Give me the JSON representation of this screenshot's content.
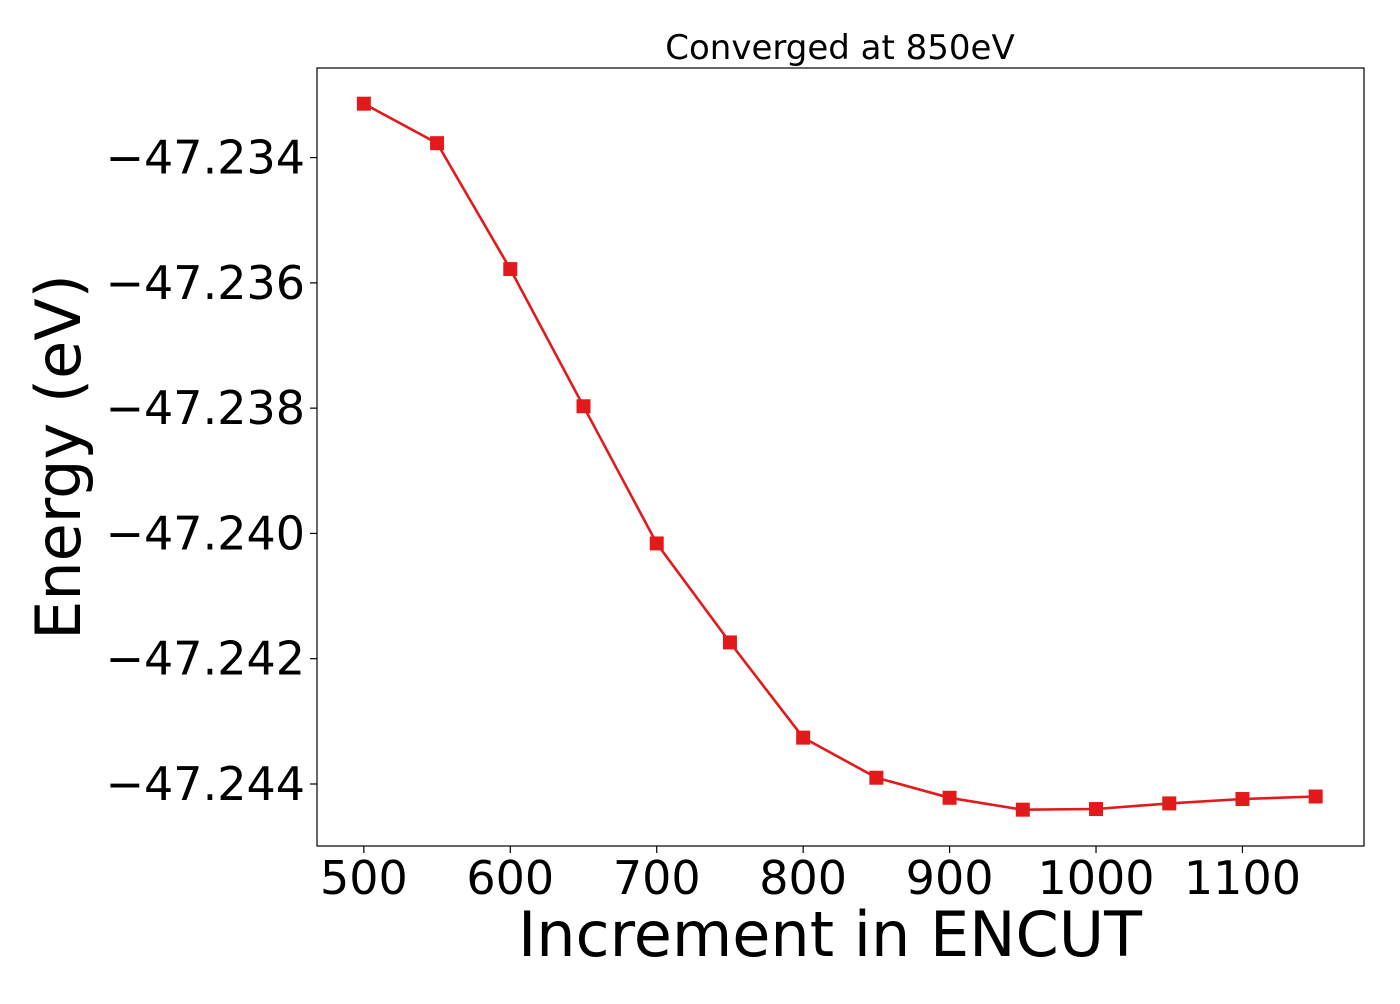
{
  "chart_data": {
    "type": "line",
    "title": "Converged at 850eV",
    "xlabel": "Increment in ENCUT",
    "ylabel": "Energy (eV)",
    "xlim": [
      468,
      1183
    ],
    "ylim": [
      -47.24499,
      -47.23257
    ],
    "x_ticks": [
      500,
      600,
      700,
      800,
      900,
      1000,
      1100
    ],
    "x_tick_labels": [
      "500",
      "600",
      "700",
      "800",
      "900",
      "1000",
      "1100"
    ],
    "y_ticks": [
      -47.234,
      -47.236,
      -47.238,
      -47.24,
      -47.242,
      -47.244
    ],
    "y_tick_labels": [
      "−47.234",
      "−47.236",
      "−47.238",
      "−47.240",
      "−47.242",
      "−47.244"
    ],
    "grid": false,
    "series": [
      {
        "color": "#e31a1c",
        "marker": "square",
        "x": [
          500,
          550,
          600,
          650,
          700,
          750,
          800,
          850,
          900,
          950,
          1000,
          1050,
          1100,
          1150
        ],
        "y": [
          -47.23314,
          -47.23377,
          -47.23578,
          -47.23797,
          -47.24016,
          -47.24174,
          -47.24326,
          -47.2439,
          -47.24422,
          -47.24441,
          -47.2444,
          -47.24431,
          -47.24424,
          -47.2442
        ]
      }
    ]
  }
}
